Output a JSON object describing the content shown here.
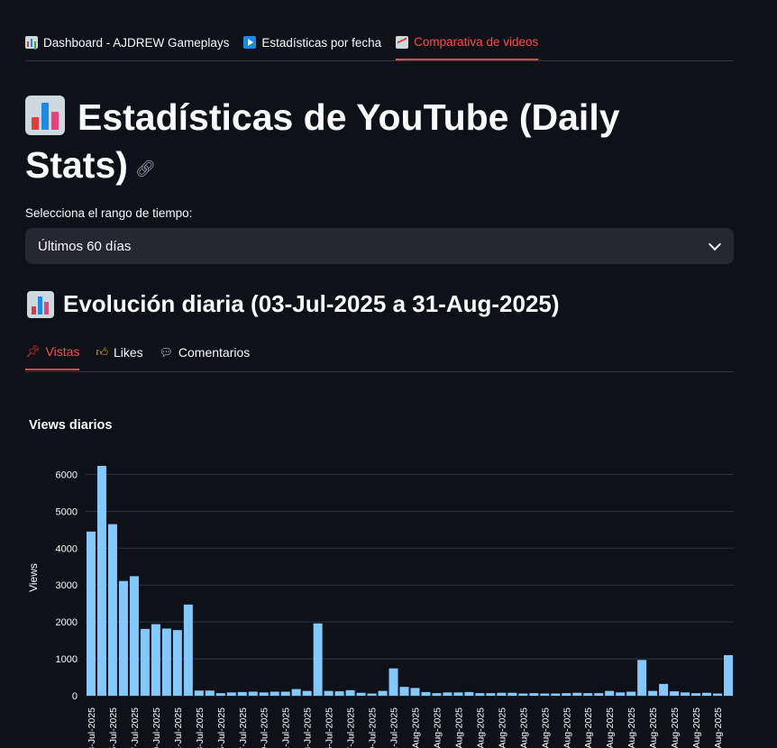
{
  "nav": {
    "tabs": [
      {
        "label": "Dashboard - AJDREW Gameplays",
        "icon": "bar-chart-icon"
      },
      {
        "label": "Estadísticas por fecha",
        "icon": "play-button-icon"
      },
      {
        "label": "Comparativa de videos",
        "icon": "chart-increasing-icon"
      }
    ],
    "active_index": 2
  },
  "page": {
    "title": "Estadísticas de YouTube (Daily Stats)",
    "title_icon": "bar-chart-icon",
    "anchor_icon": "link-icon"
  },
  "range_select": {
    "label": "Selecciona el rango de tiempo:",
    "value": "Últimos 60 días"
  },
  "section": {
    "heading": "Evolución diaria (03-Jul-2025 a 31-Aug-2025)"
  },
  "metric_tabs": {
    "tabs": [
      {
        "label": "Vistas",
        "icon": "pushpin-icon"
      },
      {
        "label": "Likes",
        "icon": "thumbs-up-icon"
      },
      {
        "label": "Comentarios",
        "icon": "speech-bubble-icon"
      }
    ],
    "active_index": 0
  },
  "colors": {
    "background": "#0e1117",
    "accent": "#ff4b4b",
    "bar": "#83c9ff",
    "select_bg": "#262730"
  },
  "chart_data": {
    "type": "bar",
    "title": "Views diarios",
    "ylabel": "Views",
    "xlabel": "",
    "ylim": [
      0,
      6400
    ],
    "yticks": [
      0,
      1000,
      2000,
      3000,
      4000,
      5000,
      6000
    ],
    "grid": true,
    "categories": [
      "03-Jul-2025",
      "04-Jul-2025",
      "05-Jul-2025",
      "06-Jul-2025",
      "07-Jul-2025",
      "08-Jul-2025",
      "09-Jul-2025",
      "10-Jul-2025",
      "11-Jul-2025",
      "12-Jul-2025",
      "13-Jul-2025",
      "14-Jul-2025",
      "15-Jul-2025",
      "16-Jul-2025",
      "17-Jul-2025",
      "18-Jul-2025",
      "19-Jul-2025",
      "20-Jul-2025",
      "21-Jul-2025",
      "22-Jul-2025",
      "23-Jul-2025",
      "24-Jul-2025",
      "25-Jul-2025",
      "26-Jul-2025",
      "27-Jul-2025",
      "28-Jul-2025",
      "29-Jul-2025",
      "30-Jul-2025",
      "31-Jul-2025",
      "01-Aug-2025",
      "02-Aug-2025",
      "03-Aug-2025",
      "04-Aug-2025",
      "05-Aug-2025",
      "06-Aug-2025",
      "07-Aug-2025",
      "08-Aug-2025",
      "09-Aug-2025",
      "10-Aug-2025",
      "11-Aug-2025",
      "12-Aug-2025",
      "13-Aug-2025",
      "14-Aug-2025",
      "15-Aug-2025",
      "16-Aug-2025",
      "17-Aug-2025",
      "18-Aug-2025",
      "19-Aug-2025",
      "20-Aug-2025",
      "21-Aug-2025",
      "22-Aug-2025",
      "23-Aug-2025",
      "24-Aug-2025",
      "25-Aug-2025",
      "26-Aug-2025",
      "27-Aug-2025",
      "28-Aug-2025",
      "29-Aug-2025",
      "30-Aug-2025",
      "31-Aug-2025"
    ],
    "values": [
      4450,
      6230,
      4650,
      3110,
      3240,
      1810,
      1940,
      1820,
      1780,
      2470,
      140,
      140,
      70,
      90,
      100,
      110,
      90,
      110,
      110,
      180,
      130,
      1960,
      130,
      120,
      150,
      80,
      60,
      130,
      740,
      240,
      210,
      100,
      70,
      90,
      90,
      100,
      70,
      70,
      80,
      80,
      60,
      70,
      60,
      60,
      70,
      80,
      70,
      70,
      130,
      90,
      110,
      970,
      130,
      320,
      120,
      90,
      70,
      80,
      60,
      1100
    ],
    "tick_every": 2
  }
}
